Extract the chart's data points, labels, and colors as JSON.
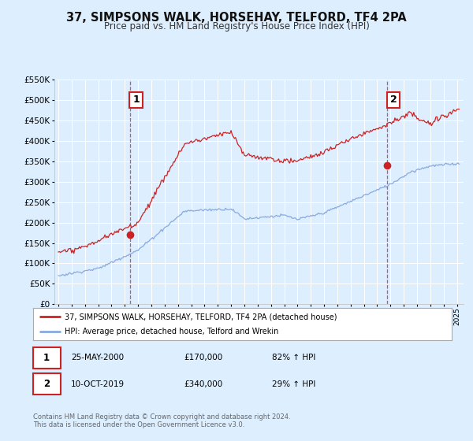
{
  "title": "37, SIMPSONS WALK, HORSEHAY, TELFORD, TF4 2PA",
  "subtitle": "Price paid vs. HM Land Registry's House Price Index (HPI)",
  "bg_color": "#ddeeff",
  "plot_bg_color": "#ddeeff",
  "grid_color": "#ffffff",
  "red_color": "#cc2222",
  "blue_color": "#88aadd",
  "sale1_year": 2000.38,
  "sale1_price": 170000,
  "sale2_year": 2019.77,
  "sale2_price": 340000,
  "legend1": "37, SIMPSONS WALK, HORSEHAY, TELFORD, TF4 2PA (detached house)",
  "legend2": "HPI: Average price, detached house, Telford and Wrekin",
  "table_row1": [
    "1",
    "25-MAY-2000",
    "£170,000",
    "82% ↑ HPI"
  ],
  "table_row2": [
    "2",
    "10-OCT-2019",
    "£340,000",
    "29% ↑ HPI"
  ],
  "footer1": "Contains HM Land Registry data © Crown copyright and database right 2024.",
  "footer2": "This data is licensed under the Open Government Licence v3.0.",
  "xmin": 1994.7,
  "xmax": 2025.5,
  "ymin": 0,
  "ymax": 550000,
  "yticks": [
    0,
    50000,
    100000,
    150000,
    200000,
    250000,
    300000,
    350000,
    400000,
    450000,
    500000,
    550000
  ],
  "xticks": [
    1995,
    1996,
    1997,
    1998,
    1999,
    2000,
    2001,
    2002,
    2003,
    2004,
    2005,
    2006,
    2007,
    2008,
    2009,
    2010,
    2011,
    2012,
    2013,
    2014,
    2015,
    2016,
    2017,
    2018,
    2019,
    2020,
    2021,
    2022,
    2023,
    2024,
    2025
  ]
}
